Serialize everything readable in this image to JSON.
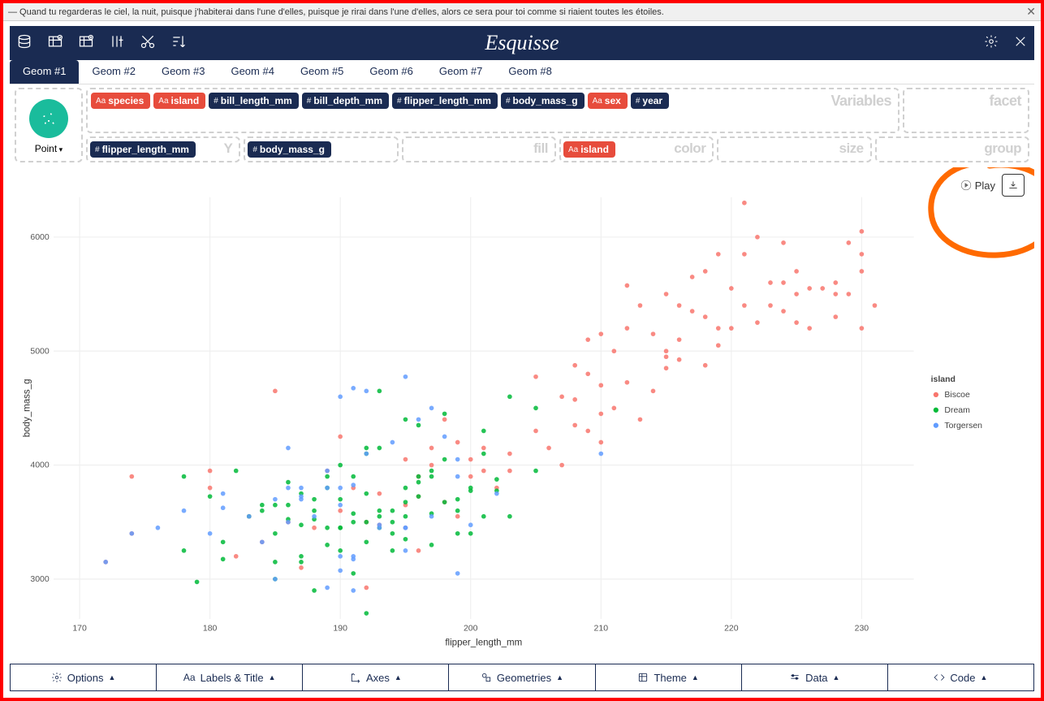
{
  "quote": "— Quand tu regarderas le ciel, la nuit, puisque j'habiterai dans l'une d'elles, puisque je rirai dans l'une d'elles, alors ce sera pour toi comme si riaient toutes les étoiles.",
  "app_title": "Esquisse",
  "geom_tabs": [
    "Geom #1",
    "Geom #2",
    "Geom #3",
    "Geom #4",
    "Geom #5",
    "Geom #6",
    "Geom #7",
    "Geom #8"
  ],
  "active_tab": 0,
  "geom_type": "Point",
  "variables": [
    {
      "name": "species",
      "type": "factor"
    },
    {
      "name": "island",
      "type": "factor"
    },
    {
      "name": "bill_length_mm",
      "type": "numeric"
    },
    {
      "name": "bill_depth_mm",
      "type": "numeric"
    },
    {
      "name": "flipper_length_mm",
      "type": "numeric"
    },
    {
      "name": "body_mass_g",
      "type": "numeric"
    },
    {
      "name": "sex",
      "type": "factor"
    },
    {
      "name": "year",
      "type": "numeric"
    }
  ],
  "panel_labels": {
    "vars": "Variables",
    "facet": "facet",
    "y": "Y",
    "fill": "fill",
    "color": "color",
    "size": "size",
    "group": "group"
  },
  "aes": {
    "x": {
      "name": "flipper_length_mm",
      "type": "numeric"
    },
    "y": {
      "name": "body_mass_g",
      "type": "numeric"
    },
    "color": {
      "name": "island",
      "type": "factor"
    }
  },
  "play_label": "Play",
  "chart": {
    "type": "scatter",
    "xlabel": "flipper_length_mm",
    "ylabel": "body_mass_g",
    "xlim": [
      168,
      234
    ],
    "ylim": [
      2650,
      6350
    ],
    "xticks": [
      170,
      180,
      190,
      200,
      210,
      220,
      230
    ],
    "yticks": [
      3000,
      4000,
      5000,
      6000
    ],
    "background": "#ffffff",
    "grid_color": "#eeeeee",
    "point_radius": 2.7,
    "point_opacity": 0.85,
    "legend": {
      "title": "island",
      "items": [
        {
          "label": "Biscoe",
          "color": "#f8766d"
        },
        {
          "label": "Dream",
          "color": "#00ba38"
        },
        {
          "label": "Torgersen",
          "color": "#619cff"
        }
      ]
    },
    "colors": {
      "Biscoe": "#f8766d",
      "Dream": "#00ba38",
      "Torgersen": "#619cff"
    },
    "series": {
      "Biscoe": [
        [
          174,
          3400
        ],
        [
          172,
          3150
        ],
        [
          180,
          3950
        ],
        [
          180,
          3800
        ],
        [
          183,
          3550
        ],
        [
          182,
          3200
        ],
        [
          185,
          4650
        ],
        [
          186,
          3500
        ],
        [
          187,
          3100
        ],
        [
          188,
          3450
        ],
        [
          190,
          4250
        ],
        [
          190,
          3600
        ],
        [
          191,
          3800
        ],
        [
          192,
          2925
        ],
        [
          193,
          3750
        ],
        [
          195,
          3450
        ],
        [
          196,
          3250
        ],
        [
          197,
          4150
        ],
        [
          198,
          3675
        ],
        [
          174,
          3900
        ],
        [
          189,
          3950
        ],
        [
          198,
          4400
        ],
        [
          193,
          3475
        ],
        [
          184,
          3325
        ],
        [
          195,
          4050
        ],
        [
          192,
          3500
        ],
        [
          203,
          4100
        ],
        [
          210,
          4200
        ],
        [
          210,
          4700
        ],
        [
          211,
          4500
        ],
        [
          212,
          5200
        ],
        [
          213,
          5400
        ],
        [
          214,
          4650
        ],
        [
          215,
          5000
        ],
        [
          215,
          4850
        ],
        [
          216,
          5100
        ],
        [
          217,
          5350
        ],
        [
          218,
          5700
        ],
        [
          219,
          5200
        ],
        [
          220,
          5550
        ],
        [
          221,
          5400
        ],
        [
          222,
          5250
        ],
        [
          223,
          5600
        ],
        [
          224,
          5350
        ],
        [
          225,
          5700
        ],
        [
          226,
          5200
        ],
        [
          227,
          5550
        ],
        [
          228,
          5600
        ],
        [
          229,
          5500
        ],
        [
          230,
          5700
        ],
        [
          230,
          5850
        ],
        [
          231,
          5400
        ],
        [
          208,
          4350
        ],
        [
          209,
          5100
        ],
        [
          210,
          4450
        ],
        [
          212,
          4725
        ],
        [
          214,
          5150
        ],
        [
          215,
          4950
        ],
        [
          216,
          5400
        ],
        [
          217,
          5650
        ],
        [
          218,
          5300
        ],
        [
          219,
          5850
        ],
        [
          220,
          5200
        ],
        [
          221,
          5850
        ],
        [
          222,
          6000
        ],
        [
          223,
          5400
        ],
        [
          224,
          5600
        ],
        [
          225,
          5250
        ],
        [
          226,
          5550
        ],
        [
          228,
          5300
        ],
        [
          229,
          5950
        ],
        [
          230,
          6050
        ],
        [
          212,
          5575
        ],
        [
          215,
          5500
        ],
        [
          216,
          4925
        ],
        [
          218,
          4875
        ],
        [
          219,
          5050
        ],
        [
          221,
          6300
        ],
        [
          224,
          5950
        ],
        [
          225,
          5500
        ],
        [
          228,
          5500
        ],
        [
          230,
          5200
        ],
        [
          209,
          4800
        ],
        [
          210,
          5150
        ],
        [
          211,
          5000
        ],
        [
          213,
          4400
        ],
        [
          207,
          4000
        ],
        [
          208,
          4575
        ],
        [
          209,
          4300
        ],
        [
          206,
          4150
        ],
        [
          205,
          4300
        ],
        [
          203,
          3950
        ],
        [
          205,
          4775
        ],
        [
          207,
          4600
        ],
        [
          208,
          4875
        ],
        [
          200,
          3900
        ],
        [
          201,
          4150
        ],
        [
          195,
          3650
        ],
        [
          196,
          3725
        ],
        [
          199,
          3550
        ],
        [
          202,
          3800
        ],
        [
          196,
          3900
        ],
        [
          197,
          4000
        ],
        [
          199,
          4200
        ],
        [
          201,
          3950
        ],
        [
          200,
          4050
        ]
      ],
      "Dream": [
        [
          178,
          3250
        ],
        [
          178,
          3900
        ],
        [
          181,
          3325
        ],
        [
          182,
          3950
        ],
        [
          184,
          3650
        ],
        [
          185,
          3650
        ],
        [
          186,
          3525
        ],
        [
          187,
          3750
        ],
        [
          187,
          3150
        ],
        [
          188,
          2900
        ],
        [
          188,
          3600
        ],
        [
          189,
          3300
        ],
        [
          189,
          3900
        ],
        [
          190,
          3700
        ],
        [
          190,
          4000
        ],
        [
          191,
          3575
        ],
        [
          191,
          3050
        ],
        [
          192,
          3500
        ],
        [
          192,
          4150
        ],
        [
          193,
          3600
        ],
        [
          193,
          3550
        ],
        [
          194,
          3400
        ],
        [
          195,
          3800
        ],
        [
          195,
          3350
        ],
        [
          196,
          3725
        ],
        [
          196,
          4350
        ],
        [
          197,
          3300
        ],
        [
          197,
          3900
        ],
        [
          198,
          3675
        ],
        [
          198,
          4450
        ],
        [
          199,
          3400
        ],
        [
          200,
          3400
        ],
        [
          200,
          3800
        ],
        [
          201,
          3550
        ],
        [
          201,
          4300
        ],
        [
          202,
          3875
        ],
        [
          203,
          3550
        ],
        [
          205,
          4500
        ],
        [
          205,
          3950
        ],
        [
          185,
          3000
        ],
        [
          186,
          3650
        ],
        [
          187,
          3475
        ],
        [
          189,
          3450
        ],
        [
          190,
          3250
        ],
        [
          191,
          3900
        ],
        [
          192,
          3325
        ],
        [
          193,
          4650
        ],
        [
          194,
          3250
        ],
        [
          195,
          4400
        ],
        [
          196,
          3850
        ],
        [
          197,
          3575
        ],
        [
          198,
          4050
        ],
        [
          199,
          3700
        ],
        [
          200,
          3775
        ],
        [
          201,
          4100
        ],
        [
          202,
          3775
        ],
        [
          203,
          4600
        ],
        [
          192,
          2700
        ],
        [
          193,
          3450
        ],
        [
          194,
          3600
        ],
        [
          195,
          3675
        ],
        [
          185,
          3400
        ],
        [
          186,
          3850
        ],
        [
          188,
          3525
        ],
        [
          190,
          3450
        ],
        [
          192,
          3750
        ],
        [
          179,
          2975
        ],
        [
          181,
          3175
        ],
        [
          183,
          3550
        ],
        [
          185,
          3150
        ],
        [
          187,
          3200
        ],
        [
          189,
          3800
        ],
        [
          191,
          3500
        ],
        [
          180,
          3725
        ],
        [
          184,
          3600
        ],
        [
          188,
          3700
        ],
        [
          190,
          3450
        ],
        [
          192,
          4100
        ],
        [
          194,
          3500
        ],
        [
          196,
          3900
        ],
        [
          193,
          4150
        ],
        [
          195,
          3550
        ],
        [
          197,
          3950
        ],
        [
          199,
          3600
        ]
      ],
      "Torgersen": [
        [
          181,
          3750
        ],
        [
          186,
          3800
        ],
        [
          195,
          3250
        ],
        [
          193,
          3450
        ],
        [
          190,
          3650
        ],
        [
          181,
          3625
        ],
        [
          191,
          4675
        ],
        [
          198,
          4250
        ],
        [
          185,
          3700
        ],
        [
          195,
          3450
        ],
        [
          197,
          4500
        ],
        [
          184,
          3325
        ],
        [
          194,
          4200
        ],
        [
          174,
          3400
        ],
        [
          180,
          3400
        ],
        [
          189,
          3800
        ],
        [
          185,
          3000
        ],
        [
          187,
          3700
        ],
        [
          183,
          3550
        ],
        [
          187,
          3800
        ],
        [
          172,
          3150
        ],
        [
          190,
          3800
        ],
        [
          196,
          4400
        ],
        [
          178,
          3600
        ],
        [
          192,
          4100
        ],
        [
          192,
          4650
        ],
        [
          189,
          2925
        ],
        [
          188,
          3550
        ],
        [
          190,
          4600
        ],
        [
          191,
          3200
        ],
        [
          186,
          4150
        ],
        [
          199,
          3900
        ],
        [
          189,
          3950
        ],
        [
          195,
          3450
        ],
        [
          176,
          3450
        ],
        [
          202,
          3750
        ],
        [
          186,
          3500
        ],
        [
          199,
          4050
        ],
        [
          191,
          3175
        ],
        [
          195,
          4775
        ],
        [
          191,
          3825
        ],
        [
          210,
          4100
        ],
        [
          190,
          3200
        ],
        [
          197,
          3550
        ],
        [
          193,
          3475
        ],
        [
          199,
          3050
        ],
        [
          187,
          3725
        ],
        [
          190,
          3075
        ],
        [
          191,
          2900
        ],
        [
          200,
          3475
        ]
      ]
    }
  },
  "bottom": [
    {
      "icon": "gear",
      "label": "Options"
    },
    {
      "icon": "Aa",
      "label": "Labels & Title"
    },
    {
      "icon": "axes",
      "label": "Axes"
    },
    {
      "icon": "shapes",
      "label": "Geometries"
    },
    {
      "icon": "theme",
      "label": "Theme"
    },
    {
      "icon": "data",
      "label": "Data"
    },
    {
      "icon": "code",
      "label": "Code"
    }
  ]
}
